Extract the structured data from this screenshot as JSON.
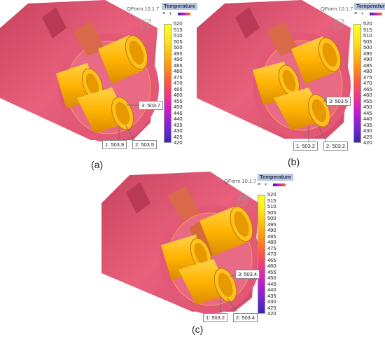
{
  "app_label": "QForm 10.1.7",
  "legend_title": "Temperature",
  "toolbar": {
    "menu_glyph": "≡",
    "dropdown_glyph": "▾"
  },
  "legend_values": [
    "520",
    "515",
    "510",
    "505",
    "500",
    "495",
    "490",
    "485",
    "480",
    "475",
    "470",
    "465",
    "460",
    "455",
    "450",
    "445",
    "440",
    "435",
    "430",
    "425",
    "420"
  ],
  "colors": {
    "billet_pink": "#e65a78",
    "billet_dark": "#c8425f",
    "tube_orange": "#ffb400",
    "tube_light": "#ffd34a",
    "tube_dark": "#d98a00"
  },
  "panels": [
    {
      "caption": "(a)",
      "probes": [
        "1: 503.9",
        "2: 503.5",
        "3: 503.7"
      ]
    },
    {
      "caption": "(b)",
      "probes": [
        "1: 503.2",
        "2: 503.2",
        "3: 503.5"
      ]
    },
    {
      "caption": "(c)",
      "probes": [
        "1: 503.2",
        "2: 503.4",
        "3: 503.4"
      ]
    }
  ]
}
